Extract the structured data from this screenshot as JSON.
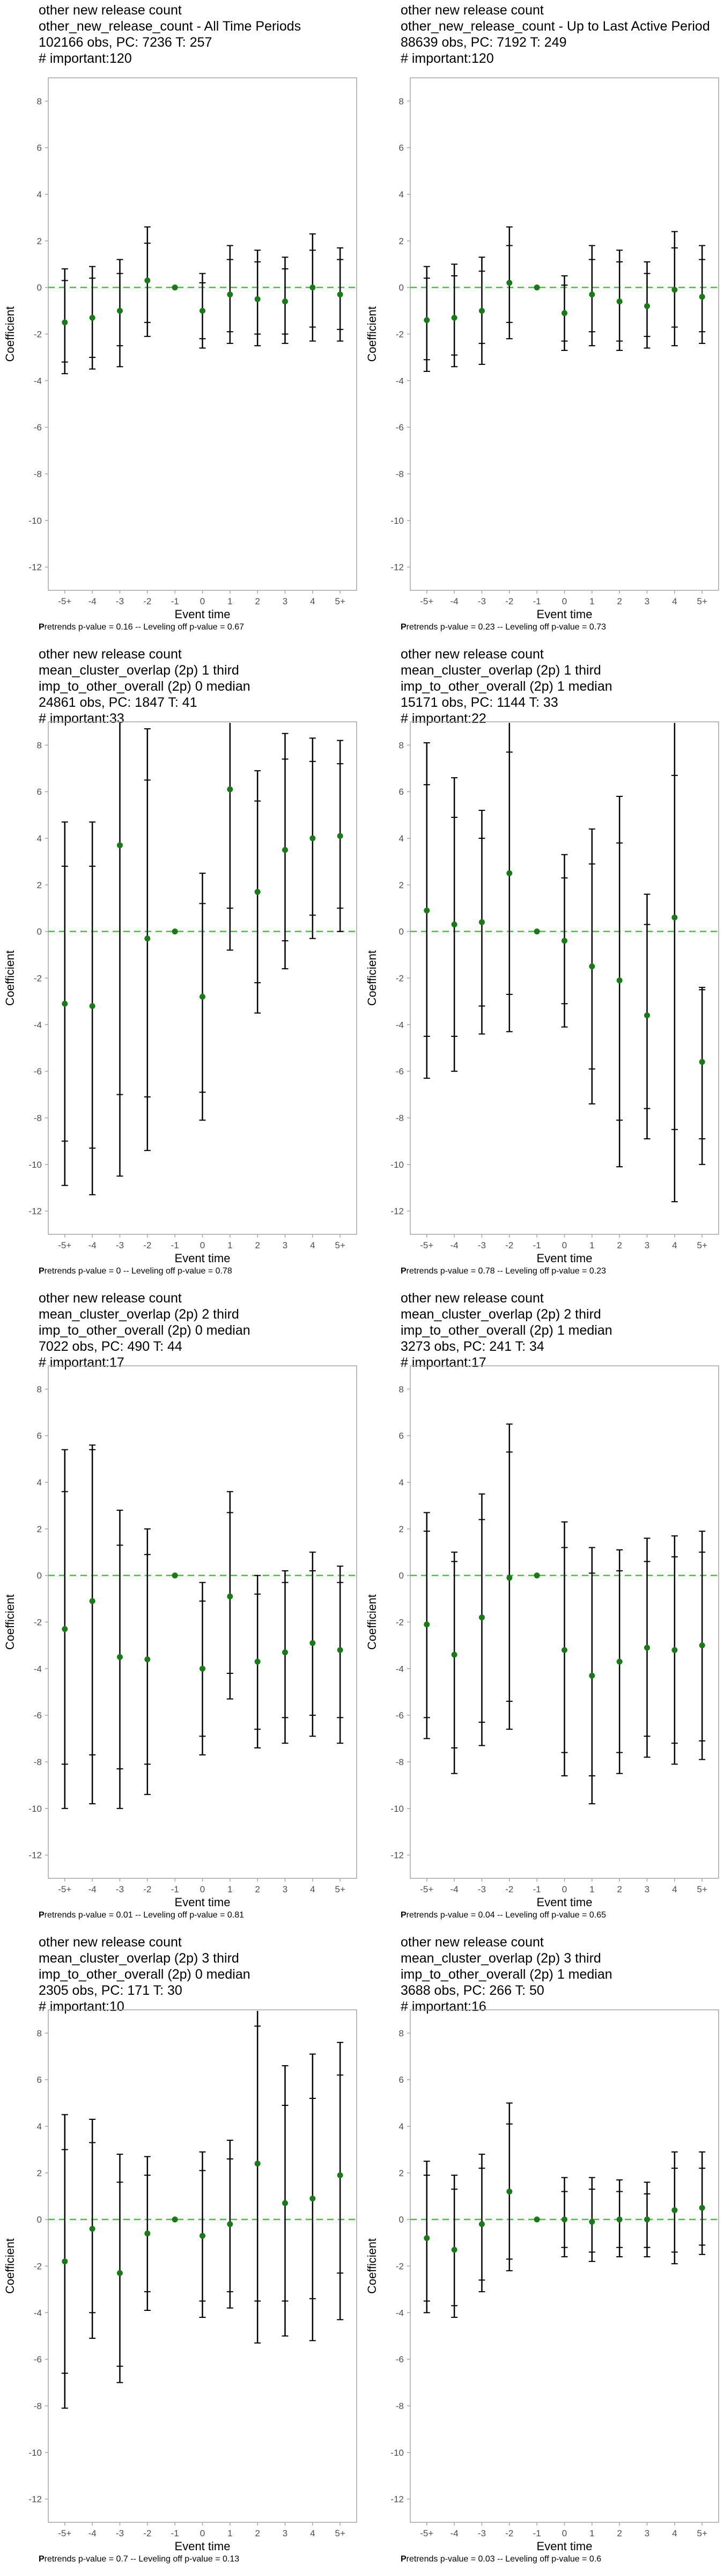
{
  "chart_data": [
    {
      "type": "scatter",
      "title_lines": [
        "other new release count",
        "other_new_release_count - All Time Periods",
        "102166 obs, PC: 7236 T: 257",
        "# important:120"
      ],
      "xlabel": "Event time",
      "ylabel": "Coefficient",
      "categories": [
        "-5+",
        "-4",
        "-3",
        "-2",
        "-1",
        "0",
        "1",
        "2",
        "3",
        "4",
        "5+"
      ],
      "ylim": [
        -13,
        9
      ],
      "yticks": [
        8,
        6,
        4,
        2,
        0,
        -2,
        -4,
        -6,
        -8,
        -10,
        -12
      ],
      "coef": [
        -1.5,
        -1.3,
        -1.0,
        0.3,
        0.0,
        -1.0,
        -0.3,
        -0.5,
        -0.6,
        0.0,
        -0.3
      ],
      "ci95": [
        [
          -3.7,
          0.8
        ],
        [
          -3.5,
          0.9
        ],
        [
          -3.4,
          1.2
        ],
        [
          -2.1,
          2.6
        ],
        [
          0.0,
          0.0
        ],
        [
          -2.6,
          0.6
        ],
        [
          -2.4,
          1.8
        ],
        [
          -2.5,
          1.6
        ],
        [
          -2.4,
          1.3
        ],
        [
          -2.3,
          2.3
        ],
        [
          -2.3,
          1.7
        ]
      ],
      "ci90": [
        [
          -3.2,
          0.3
        ],
        [
          -3.0,
          0.4
        ],
        [
          -2.5,
          0.6
        ],
        [
          -1.5,
          1.9
        ],
        [
          0.0,
          0.0
        ],
        [
          -2.2,
          0.2
        ],
        [
          -1.9,
          1.2
        ],
        [
          -2.0,
          1.1
        ],
        [
          -2.0,
          0.8
        ],
        [
          -1.7,
          1.6
        ],
        [
          -1.8,
          1.2
        ]
      ],
      "reference_line": 0,
      "footnote": {
        "label_prefix": "P",
        "label_rest": "retrends p-value = 0.16 -- Leveling off p-value = 0.67"
      }
    },
    {
      "type": "scatter",
      "title_lines": [
        "other new release count",
        "other_new_release_count - Up to Last Active Period",
        "88639 obs, PC: 7192 T: 249",
        "# important:120"
      ],
      "xlabel": "Event time",
      "ylabel": "Coefficient",
      "categories": [
        "-5+",
        "-4",
        "-3",
        "-2",
        "-1",
        "0",
        "1",
        "2",
        "3",
        "4",
        "5+"
      ],
      "ylim": [
        -13,
        9
      ],
      "yticks": [
        8,
        6,
        4,
        2,
        0,
        -2,
        -4,
        -6,
        -8,
        -10,
        -12
      ],
      "coef": [
        -1.4,
        -1.3,
        -1.0,
        0.2,
        0.0,
        -1.1,
        -0.3,
        -0.6,
        -0.8,
        -0.1,
        -0.4
      ],
      "ci95": [
        [
          -3.6,
          0.9
        ],
        [
          -3.4,
          1.0
        ],
        [
          -3.3,
          1.3
        ],
        [
          -2.2,
          2.6
        ],
        [
          0.0,
          0.0
        ],
        [
          -2.7,
          0.5
        ],
        [
          -2.5,
          1.8
        ],
        [
          -2.7,
          1.6
        ],
        [
          -2.6,
          1.1
        ],
        [
          -2.5,
          2.4
        ],
        [
          -2.4,
          1.8
        ]
      ],
      "ci90": [
        [
          -3.1,
          0.4
        ],
        [
          -2.9,
          0.5
        ],
        [
          -2.4,
          0.7
        ],
        [
          -1.5,
          1.8
        ],
        [
          0.0,
          0.0
        ],
        [
          -2.3,
          0.1
        ],
        [
          -1.9,
          1.2
        ],
        [
          -2.3,
          1.1
        ],
        [
          -2.1,
          0.6
        ],
        [
          -1.7,
          1.7
        ],
        [
          -1.9,
          1.2
        ]
      ],
      "reference_line": 0,
      "footnote": {
        "label_prefix": "P",
        "label_rest": "retrends p-value = 0.23 -- Leveling off p-value = 0.73"
      }
    },
    {
      "type": "scatter",
      "title_lines": [
        "other new release count",
        "mean_cluster_overlap (2p) 1 third",
        "imp_to_other_overall (2p) 0 median",
        "24861 obs, PC: 1847 T: 41",
        "# important:33"
      ],
      "xlabel": "Event time",
      "ylabel": "Coefficient",
      "categories": [
        "-5+",
        "-4",
        "-3",
        "-2",
        "-1",
        "0",
        "1",
        "2",
        "3",
        "4",
        "5+"
      ],
      "ylim": [
        -13,
        9
      ],
      "yticks": [
        8,
        6,
        4,
        2,
        0,
        -2,
        -4,
        -6,
        -8,
        -10,
        -12
      ],
      "coef": [
        -3.1,
        -3.2,
        3.7,
        -0.3,
        0.0,
        -2.8,
        6.1,
        1.7,
        3.5,
        4.0,
        4.1
      ],
      "ci95": [
        [
          -10.9,
          4.7
        ],
        [
          -11.3,
          4.7
        ],
        [
          -10.5,
          9.0
        ],
        [
          -9.4,
          8.7
        ],
        [
          0.0,
          0.0
        ],
        [
          -8.1,
          2.5
        ],
        [
          -0.8,
          9.0
        ],
        [
          -3.5,
          6.9
        ],
        [
          -1.6,
          8.5
        ],
        [
          -0.3,
          8.3
        ],
        [
          0.0,
          8.2
        ]
      ],
      "ci90": [
        [
          -9.0,
          2.8
        ],
        [
          -9.3,
          2.8
        ],
        [
          -7.0,
          9.0
        ],
        [
          -7.1,
          6.5
        ],
        [
          0.0,
          0.0
        ],
        [
          -6.9,
          1.2
        ],
        [
          1.0,
          9.0
        ],
        [
          -2.2,
          5.6
        ],
        [
          -0.4,
          7.4
        ],
        [
          0.7,
          7.3
        ],
        [
          1.0,
          7.2
        ]
      ],
      "reference_line": 0,
      "footnote": {
        "label_prefix": "P",
        "label_rest": "retrends p-value = 0 -- Leveling off p-value = 0.78"
      }
    },
    {
      "type": "scatter",
      "title_lines": [
        "other new release count",
        "mean_cluster_overlap (2p) 1 third",
        "imp_to_other_overall (2p) 1 median",
        "15171 obs, PC: 1144 T: 33",
        "# important:22"
      ],
      "xlabel": "Event time",
      "ylabel": "Coefficient",
      "categories": [
        "-5+",
        "-4",
        "-3",
        "-2",
        "-1",
        "0",
        "1",
        "2",
        "3",
        "4",
        "5+"
      ],
      "ylim": [
        -13,
        9
      ],
      "yticks": [
        8,
        6,
        4,
        2,
        0,
        -2,
        -4,
        -6,
        -8,
        -10,
        -12
      ],
      "coef": [
        0.9,
        0.3,
        0.4,
        2.5,
        0.0,
        -0.4,
        -1.5,
        -2.1,
        -3.6,
        0.6,
        -5.6
      ],
      "ci95": [
        [
          -6.3,
          8.1
        ],
        [
          -6.0,
          6.6
        ],
        [
          -4.4,
          5.2
        ],
        [
          -4.3,
          9.0
        ],
        [
          0.0,
          0.0
        ],
        [
          -4.1,
          3.3
        ],
        [
          -7.4,
          4.4
        ],
        [
          -10.1,
          5.8
        ],
        [
          -8.9,
          1.6
        ],
        [
          -11.6,
          9.0
        ],
        [
          -10.0,
          -2.4
        ]
      ],
      "ci90": [
        [
          -4.5,
          6.3
        ],
        [
          -4.5,
          4.9
        ],
        [
          -3.2,
          4.0
        ],
        [
          -2.7,
          7.7
        ],
        [
          0.0,
          0.0
        ],
        [
          -3.1,
          2.3
        ],
        [
          -5.9,
          2.9
        ],
        [
          -8.1,
          3.8
        ],
        [
          -7.6,
          0.3
        ],
        [
          -8.5,
          6.7
        ],
        [
          -8.9,
          -2.5
        ]
      ],
      "reference_line": 0,
      "footnote": {
        "label_prefix": "P",
        "label_rest": "retrends p-value = 0.78 -- Leveling off p-value = 0.23"
      }
    },
    {
      "type": "scatter",
      "title_lines": [
        "other new release count",
        "mean_cluster_overlap (2p) 2 third",
        "imp_to_other_overall (2p) 0 median",
        "7022 obs, PC: 490 T: 44",
        "# important:17"
      ],
      "xlabel": "Event time",
      "ylabel": "Coefficient",
      "categories": [
        "-5+",
        "-4",
        "-3",
        "-2",
        "-1",
        "0",
        "1",
        "2",
        "3",
        "4",
        "5+"
      ],
      "ylim": [
        -13,
        9
      ],
      "yticks": [
        8,
        6,
        4,
        2,
        0,
        -2,
        -4,
        -6,
        -8,
        -10,
        -12
      ],
      "coef": [
        -2.3,
        -1.1,
        -3.5,
        -3.6,
        0.0,
        -4.0,
        -0.9,
        -3.7,
        -3.3,
        -2.9,
        -3.2
      ],
      "ci95": [
        [
          -10.0,
          5.4
        ],
        [
          -9.8,
          5.6
        ],
        [
          -10.0,
          2.8
        ],
        [
          -9.4,
          2.0
        ],
        [
          0.0,
          0.0
        ],
        [
          -7.7,
          -0.3
        ],
        [
          -5.3,
          3.6
        ],
        [
          -7.4,
          0.0
        ],
        [
          -7.2,
          0.2
        ],
        [
          -6.9,
          1.0
        ],
        [
          -7.2,
          0.4
        ]
      ],
      "ci90": [
        [
          -8.1,
          3.6
        ],
        [
          -7.7,
          5.4
        ],
        [
          -8.3,
          1.3
        ],
        [
          -8.1,
          0.9
        ],
        [
          0.0,
          0.0
        ],
        [
          -6.9,
          -1.1
        ],
        [
          -4.2,
          2.7
        ],
        [
          -6.6,
          -0.8
        ],
        [
          -6.1,
          -0.3
        ],
        [
          -6.0,
          0.2
        ],
        [
          -6.1,
          -0.3
        ]
      ],
      "reference_line": 0,
      "footnote": {
        "label_prefix": "P",
        "label_rest": "retrends p-value = 0.01 -- Leveling off p-value = 0.81"
      }
    },
    {
      "type": "scatter",
      "title_lines": [
        "other new release count",
        "mean_cluster_overlap (2p) 2 third",
        "imp_to_other_overall (2p) 1 median",
        "3273 obs, PC: 241 T: 34",
        "# important:17"
      ],
      "xlabel": "Event time",
      "ylabel": "Coefficient",
      "categories": [
        "-5+",
        "-4",
        "-3",
        "-2",
        "-1",
        "0",
        "1",
        "2",
        "3",
        "4",
        "5+"
      ],
      "ylim": [
        -13,
        9
      ],
      "yticks": [
        8,
        6,
        4,
        2,
        0,
        -2,
        -4,
        -6,
        -8,
        -10,
        -12
      ],
      "coef": [
        -2.1,
        -3.4,
        -1.8,
        -0.1,
        0.0,
        -3.2,
        -4.3,
        -3.7,
        -3.1,
        -3.2,
        -3.0
      ],
      "ci95": [
        [
          -7.0,
          2.7
        ],
        [
          -8.5,
          1.0
        ],
        [
          -7.3,
          3.5
        ],
        [
          -6.6,
          6.5
        ],
        [
          0.0,
          0.0
        ],
        [
          -8.6,
          2.3
        ],
        [
          -9.8,
          1.2
        ],
        [
          -8.5,
          1.1
        ],
        [
          -7.8,
          1.6
        ],
        [
          -8.1,
          1.7
        ],
        [
          -7.9,
          1.9
        ]
      ],
      "ci90": [
        [
          -6.1,
          1.9
        ],
        [
          -7.4,
          0.6
        ],
        [
          -6.3,
          2.4
        ],
        [
          -5.4,
          5.3
        ],
        [
          0.0,
          0.0
        ],
        [
          -7.6,
          1.2
        ],
        [
          -8.6,
          0.1
        ],
        [
          -7.6,
          0.2
        ],
        [
          -6.9,
          0.6
        ],
        [
          -7.2,
          0.8
        ],
        [
          -7.1,
          1.0
        ]
      ],
      "reference_line": 0,
      "footnote": {
        "label_prefix": "P",
        "label_rest": "retrends p-value = 0.04 -- Leveling off p-value = 0.65"
      }
    },
    {
      "type": "scatter",
      "title_lines": [
        "other new release count",
        "mean_cluster_overlap (2p) 3 third",
        "imp_to_other_overall (2p) 0 median",
        "2305 obs, PC: 171 T: 30",
        "# important:10"
      ],
      "xlabel": "Event time",
      "ylabel": "Coefficient",
      "categories": [
        "-5+",
        "-4",
        "-3",
        "-2",
        "-1",
        "0",
        "1",
        "2",
        "3",
        "4",
        "5+"
      ],
      "ylim": [
        -13,
        9
      ],
      "yticks": [
        8,
        6,
        4,
        2,
        0,
        -2,
        -4,
        -6,
        -8,
        -10,
        -12
      ],
      "coef": [
        -1.8,
        -0.4,
        -2.3,
        -0.6,
        0.0,
        -0.7,
        -0.2,
        2.4,
        0.7,
        0.9,
        1.9
      ],
      "ci95": [
        [
          -8.1,
          4.5
        ],
        [
          -5.1,
          4.3
        ],
        [
          -7.0,
          2.8
        ],
        [
          -3.9,
          2.7
        ],
        [
          0.0,
          0.0
        ],
        [
          -4.2,
          2.9
        ],
        [
          -3.8,
          3.4
        ],
        [
          -5.3,
          9.0
        ],
        [
          -5.0,
          6.6
        ],
        [
          -5.2,
          7.1
        ],
        [
          -4.3,
          7.6
        ]
      ],
      "ci90": [
        [
          -6.6,
          3.0
        ],
        [
          -4.0,
          3.3
        ],
        [
          -6.3,
          1.6
        ],
        [
          -3.1,
          1.9
        ],
        [
          0.0,
          0.0
        ],
        [
          -3.5,
          2.1
        ],
        [
          -3.1,
          2.6
        ],
        [
          -3.5,
          8.3
        ],
        [
          -3.5,
          4.9
        ],
        [
          -3.4,
          5.2
        ],
        [
          -2.3,
          6.2
        ]
      ],
      "reference_line": 0,
      "footnote": {
        "label_prefix": "P",
        "label_rest": "retrends p-value = 0.7 -- Leveling off p-value = 0.13"
      }
    },
    {
      "type": "scatter",
      "title_lines": [
        "other new release count",
        "mean_cluster_overlap (2p) 3 third",
        "imp_to_other_overall (2p) 1 median",
        "3688 obs, PC: 266 T: 50",
        "# important:16"
      ],
      "xlabel": "Event time",
      "ylabel": "Coefficient",
      "categories": [
        "-5+",
        "-4",
        "-3",
        "-2",
        "-1",
        "0",
        "1",
        "2",
        "3",
        "4",
        "5+"
      ],
      "ylim": [
        -13,
        9
      ],
      "yticks": [
        8,
        6,
        4,
        2,
        0,
        -2,
        -4,
        -6,
        -8,
        -10,
        -12
      ],
      "coef": [
        -0.8,
        -1.3,
        -0.2,
        1.2,
        0.0,
        0.0,
        -0.1,
        0.0,
        0.0,
        0.4,
        0.5
      ],
      "ci95": [
        [
          -4.0,
          2.5
        ],
        [
          -4.2,
          1.9
        ],
        [
          -3.1,
          2.8
        ],
        [
          -2.2,
          5.0
        ],
        [
          0.0,
          0.0
        ],
        [
          -1.6,
          1.8
        ],
        [
          -1.8,
          1.8
        ],
        [
          -1.6,
          1.7
        ],
        [
          -1.6,
          1.6
        ],
        [
          -1.9,
          2.9
        ],
        [
          -1.5,
          2.9
        ]
      ],
      "ci90": [
        [
          -3.5,
          1.9
        ],
        [
          -3.7,
          1.3
        ],
        [
          -2.6,
          2.2
        ],
        [
          -1.7,
          4.1
        ],
        [
          0.0,
          0.0
        ],
        [
          -1.2,
          1.2
        ],
        [
          -1.4,
          1.3
        ],
        [
          -1.2,
          1.2
        ],
        [
          -1.2,
          1.1
        ],
        [
          -1.4,
          2.2
        ],
        [
          -1.1,
          2.2
        ]
      ],
      "reference_line": 0,
      "footnote": {
        "label_prefix": "P",
        "label_rest": "retrends p-value = 0.03 -- Leveling off p-value = 0.6"
      }
    }
  ],
  "colors": {
    "point": "#1a7a1a",
    "errorbar": "#000000",
    "reference_line": "#33cc33",
    "frame": "#a6a6a6",
    "tick_label": "#4d4d4d"
  }
}
